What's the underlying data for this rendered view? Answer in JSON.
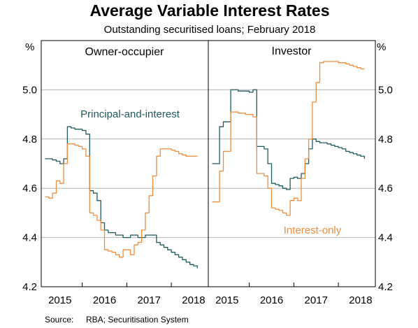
{
  "chart_data": {
    "type": "line",
    "title": "Average Variable Interest Rates",
    "subtitle": "Outstanding securitised loans; February 2018",
    "unit_left": "%",
    "unit_right": "%",
    "ylim": [
      4.2,
      5.2
    ],
    "y_ticks": [
      "5.0",
      "4.8",
      "4.6",
      "4.4",
      "4.2"
    ],
    "x_ticks": [
      "2015",
      "2016",
      "2017",
      "2018"
    ],
    "x_tick_years": [
      2015,
      2016,
      2017,
      2018
    ],
    "xlim": [
      2014.58,
      2018.33
    ],
    "grid": true,
    "source_label": "Source:",
    "source_text": "RBA; Securitisation System",
    "colors": {
      "principal_and_interest": "#1f5a5e",
      "interest_only": "#f08c3c",
      "grid": "#b4b4b4"
    },
    "panels": [
      {
        "title": "Owner-occupier",
        "series_label": "Principal-and-interest",
        "series": [
          {
            "name": "Principal-and-interest",
            "color": "#1f5a5e",
            "x": [
              2014.667,
              2014.75,
              2014.833,
              2014.917,
              2015.0,
              2015.083,
              2015.167,
              2015.25,
              2015.333,
              2015.417,
              2015.5,
              2015.583,
              2015.667,
              2015.75,
              2015.833,
              2015.917,
              2016.0,
              2016.083,
              2016.167,
              2016.25,
              2016.333,
              2016.417,
              2016.5,
              2016.583,
              2016.667,
              2016.75,
              2016.833,
              2016.917,
              2017.0,
              2017.083,
              2017.167,
              2017.25,
              2017.333,
              2017.417,
              2017.5,
              2017.583,
              2017.667,
              2017.75,
              2017.833,
              2017.917,
              2018.0,
              2018.083
            ],
            "y": [
              4.72,
              4.72,
              4.715,
              4.71,
              4.7,
              4.72,
              4.85,
              4.845,
              4.84,
              4.84,
              4.835,
              4.82,
              4.59,
              4.58,
              4.55,
              4.46,
              4.43,
              4.42,
              4.42,
              4.41,
              4.41,
              4.4,
              4.4,
              4.41,
              4.41,
              4.4,
              4.4,
              4.41,
              4.41,
              4.41,
              4.38,
              4.37,
              4.36,
              4.35,
              4.34,
              4.33,
              4.32,
              4.31,
              4.3,
              4.29,
              4.285,
              4.275
            ]
          },
          {
            "name": "Interest-only",
            "color": "#f08c3c",
            "x": [
              2014.667,
              2014.75,
              2014.833,
              2014.917,
              2015.0,
              2015.083,
              2015.167,
              2015.25,
              2015.333,
              2015.417,
              2015.5,
              2015.583,
              2015.667,
              2015.75,
              2015.833,
              2015.917,
              2016.0,
              2016.083,
              2016.167,
              2016.25,
              2016.333,
              2016.417,
              2016.5,
              2016.583,
              2016.667,
              2016.75,
              2016.833,
              2016.917,
              2017.0,
              2017.083,
              2017.167,
              2017.25,
              2017.333,
              2017.417,
              2017.5,
              2017.583,
              2017.667,
              2017.75,
              2017.833,
              2017.917,
              2018.0,
              2018.083
            ],
            "y": [
              4.565,
              4.56,
              4.58,
              4.63,
              4.62,
              4.7,
              4.78,
              4.78,
              4.775,
              4.77,
              4.76,
              4.73,
              4.5,
              4.49,
              4.47,
              4.43,
              4.35,
              4.345,
              4.34,
              4.33,
              4.32,
              4.35,
              4.35,
              4.33,
              4.37,
              4.38,
              4.43,
              4.5,
              4.57,
              4.65,
              4.73,
              4.76,
              4.76,
              4.76,
              4.755,
              4.75,
              4.74,
              4.735,
              4.73,
              4.73,
              4.73,
              4.73
            ]
          }
        ]
      },
      {
        "title": "Investor",
        "series_label": "Interest-only",
        "series": [
          {
            "name": "Principal-and-interest",
            "color": "#1f5a5e",
            "x": [
              2014.667,
              2014.75,
              2014.833,
              2014.917,
              2015.0,
              2015.083,
              2015.167,
              2015.25,
              2015.333,
              2015.417,
              2015.5,
              2015.583,
              2015.667,
              2015.75,
              2015.833,
              2015.917,
              2016.0,
              2016.083,
              2016.167,
              2016.25,
              2016.333,
              2016.417,
              2016.5,
              2016.583,
              2016.667,
              2016.75,
              2016.833,
              2016.917,
              2017.0,
              2017.083,
              2017.167,
              2017.25,
              2017.333,
              2017.417,
              2017.5,
              2017.583,
              2017.667,
              2017.75,
              2017.833,
              2017.917,
              2018.0,
              2018.083
            ],
            "y": [
              4.7,
              4.7,
              4.85,
              4.87,
              4.87,
              5.0,
              5.0,
              4.995,
              4.995,
              4.995,
              4.99,
              5.0,
              4.77,
              4.77,
              4.76,
              4.7,
              4.62,
              4.615,
              4.61,
              4.6,
              4.595,
              4.64,
              4.645,
              4.64,
              4.66,
              4.7,
              4.76,
              4.8,
              4.79,
              4.785,
              4.785,
              4.78,
              4.775,
              4.77,
              4.765,
              4.76,
              4.75,
              4.745,
              4.74,
              4.735,
              4.73,
              4.72
            ]
          },
          {
            "name": "Interest-only",
            "color": "#f08c3c",
            "x": [
              2014.667,
              2014.75,
              2014.833,
              2014.917,
              2015.0,
              2015.083,
              2015.167,
              2015.25,
              2015.333,
              2015.417,
              2015.5,
              2015.583,
              2015.667,
              2015.75,
              2015.833,
              2015.917,
              2016.0,
              2016.083,
              2016.167,
              2016.25,
              2016.333,
              2016.417,
              2016.5,
              2016.583,
              2016.667,
              2016.75,
              2016.833,
              2016.917,
              2017.0,
              2017.083,
              2017.167,
              2017.25,
              2017.333,
              2017.417,
              2017.5,
              2017.583,
              2017.667,
              2017.75,
              2017.833,
              2017.917,
              2018.0,
              2018.083
            ],
            "y": [
              4.545,
              4.545,
              4.67,
              4.75,
              4.75,
              4.91,
              4.91,
              4.905,
              4.905,
              4.9,
              4.9,
              4.89,
              4.66,
              4.66,
              4.65,
              4.6,
              4.52,
              4.515,
              4.51,
              4.5,
              4.49,
              4.55,
              4.56,
              4.55,
              4.64,
              4.72,
              4.8,
              4.95,
              5.03,
              5.11,
              5.115,
              5.115,
              5.115,
              5.115,
              5.11,
              5.11,
              5.105,
              5.1,
              5.095,
              5.09,
              5.085,
              5.085
            ]
          }
        ]
      }
    ]
  }
}
